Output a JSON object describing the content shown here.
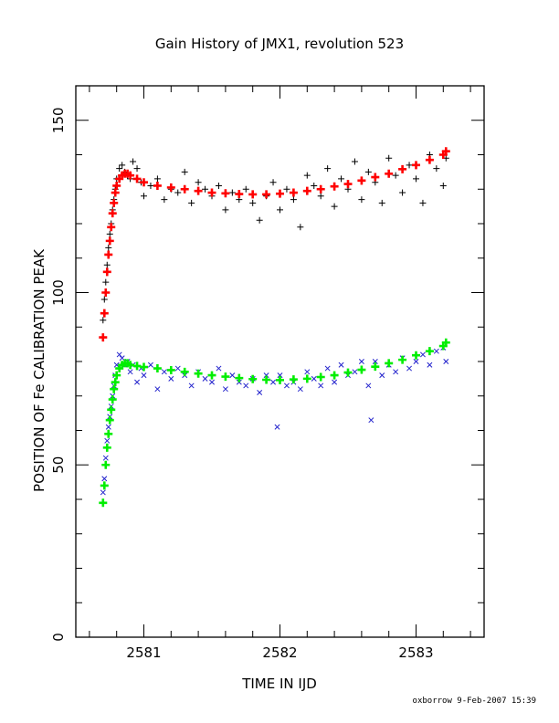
{
  "chart_data": {
    "type": "scatter",
    "title": "Gain History of JMX1, revolution 523",
    "xlabel": "TIME IN IJD",
    "ylabel": "POSITION OF Fe CALIBRATION PEAK",
    "xlim": [
      2580.5,
      2583.5
    ],
    "ylim": [
      0,
      160
    ],
    "xticks": [
      2581,
      2582,
      2583
    ],
    "yticks": [
      0,
      50,
      100,
      150
    ],
    "grid": false,
    "legend": "none",
    "series": [
      {
        "marker": "plus",
        "color": "#000000",
        "x": [
          2580.7,
          2580.71,
          2580.72,
          2580.73,
          2580.74,
          2580.75,
          2580.76,
          2580.77,
          2580.78,
          2580.79,
          2580.8,
          2580.82,
          2580.84,
          2580.86,
          2580.88,
          2580.9,
          2580.92,
          2580.95,
          2580.98,
          2581.0,
          2581.05,
          2581.1,
          2581.15,
          2581.2,
          2581.25,
          2581.3,
          2581.35,
          2581.4,
          2581.45,
          2581.5,
          2581.55,
          2581.6,
          2581.65,
          2581.7,
          2581.75,
          2581.8,
          2581.85,
          2581.9,
          2581.95,
          2582.0,
          2582.05,
          2582.1,
          2582.15,
          2582.2,
          2582.25,
          2582.3,
          2582.35,
          2582.4,
          2582.45,
          2582.5,
          2582.55,
          2582.6,
          2582.65,
          2582.7,
          2582.75,
          2582.8,
          2582.85,
          2582.9,
          2582.95,
          2583.0,
          2583.05,
          2583.1,
          2583.15,
          2583.2,
          2583.22
        ],
        "y": [
          92,
          98,
          103,
          108,
          113,
          117,
          120,
          124,
          127,
          130,
          133,
          136,
          137,
          135,
          134,
          133,
          138,
          136,
          132,
          128,
          131,
          133,
          127,
          130,
          129,
          135,
          126,
          132,
          130,
          128,
          131,
          124,
          129,
          127,
          130,
          126,
          121,
          128,
          132,
          124,
          130,
          127,
          119,
          134,
          131,
          128,
          136,
          125,
          133,
          130,
          138,
          127,
          135,
          132,
          126,
          139,
          134,
          129,
          137,
          133,
          126,
          140,
          136,
          131,
          139
        ]
      },
      {
        "marker": "x",
        "color": "#2222cc",
        "x": [
          2580.7,
          2580.71,
          2580.72,
          2580.73,
          2580.74,
          2580.75,
          2580.76,
          2580.77,
          2580.78,
          2580.79,
          2580.8,
          2580.82,
          2580.84,
          2580.86,
          2580.88,
          2580.9,
          2580.92,
          2580.95,
          2580.98,
          2581.0,
          2581.05,
          2581.1,
          2581.15,
          2581.2,
          2581.25,
          2581.3,
          2581.35,
          2581.4,
          2581.45,
          2581.5,
          2581.55,
          2581.6,
          2581.65,
          2581.7,
          2581.75,
          2581.8,
          2581.85,
          2581.9,
          2581.95,
          2581.98,
          2582.0,
          2582.05,
          2582.1,
          2582.15,
          2582.2,
          2582.25,
          2582.3,
          2582.35,
          2582.4,
          2582.45,
          2582.5,
          2582.55,
          2582.6,
          2582.65,
          2582.67,
          2582.7,
          2582.75,
          2582.8,
          2582.85,
          2582.9,
          2582.95,
          2583.0,
          2583.05,
          2583.1,
          2583.15,
          2583.2,
          2583.22
        ],
        "y": [
          42,
          46,
          52,
          57,
          61,
          64,
          67,
          70,
          73,
          76,
          79,
          82,
          81,
          79,
          80,
          77,
          79,
          74,
          78,
          76,
          79,
          72,
          77,
          75,
          78,
          76,
          73,
          77,
          75,
          74,
          78,
          72,
          76,
          74,
          73,
          75,
          71,
          76,
          74,
          61,
          76,
          73,
          74,
          72,
          77,
          75,
          73,
          78,
          74,
          79,
          76,
          77,
          80,
          73,
          63,
          80,
          76,
          79,
          77,
          81,
          78,
          80,
          82,
          79,
          83,
          84,
          80
        ]
      },
      {
        "marker": "plus",
        "color": "#ff0000",
        "x": [
          2580.7,
          2580.71,
          2580.72,
          2580.73,
          2580.74,
          2580.75,
          2580.76,
          2580.77,
          2580.78,
          2580.79,
          2580.8,
          2580.82,
          2580.84,
          2580.86,
          2580.88,
          2580.9,
          2580.95,
          2581.0,
          2581.1,
          2581.2,
          2581.3,
          2581.4,
          2581.5,
          2581.6,
          2581.7,
          2581.8,
          2581.9,
          2582.0,
          2582.1,
          2582.2,
          2582.3,
          2582.4,
          2582.5,
          2582.6,
          2582.7,
          2582.8,
          2582.9,
          2583.0,
          2583.1,
          2583.2,
          2583.22
        ],
        "y": [
          87,
          94,
          100,
          106,
          111,
          115,
          119,
          123,
          126,
          129,
          131,
          133,
          134,
          134.5,
          134.5,
          134,
          133,
          132,
          131,
          130.5,
          130,
          129.5,
          129,
          128.8,
          128.6,
          128.5,
          128.5,
          128.7,
          129,
          129.5,
          130,
          130.8,
          131.5,
          132.5,
          133.5,
          134.5,
          135.8,
          137,
          138.5,
          140,
          141
        ]
      },
      {
        "marker": "plus",
        "color": "#00ee00",
        "x": [
          2580.7,
          2580.71,
          2580.72,
          2580.73,
          2580.74,
          2580.75,
          2580.76,
          2580.77,
          2580.78,
          2580.79,
          2580.8,
          2580.82,
          2580.84,
          2580.86,
          2580.88,
          2580.9,
          2580.95,
          2581.0,
          2581.1,
          2581.2,
          2581.3,
          2581.4,
          2581.5,
          2581.6,
          2581.7,
          2581.8,
          2581.9,
          2582.0,
          2582.1,
          2582.2,
          2582.3,
          2582.4,
          2582.5,
          2582.6,
          2582.7,
          2582.8,
          2582.9,
          2583.0,
          2583.1,
          2583.2,
          2583.22
        ],
        "y": [
          39,
          44,
          50,
          55,
          59,
          63,
          66,
          69,
          72,
          74,
          76,
          78,
          79,
          79.5,
          79.5,
          79,
          78.7,
          78.4,
          78,
          77.5,
          77,
          76.5,
          76,
          75.6,
          75.2,
          74.9,
          74.7,
          74.6,
          74.8,
          75,
          75.5,
          76,
          76.8,
          77.6,
          78.5,
          79.5,
          80.5,
          81.8,
          83,
          84.5,
          85.5
        ]
      }
    ]
  },
  "footer": {
    "credit": "oxborrow  9-Feb-2007 15:39"
  }
}
